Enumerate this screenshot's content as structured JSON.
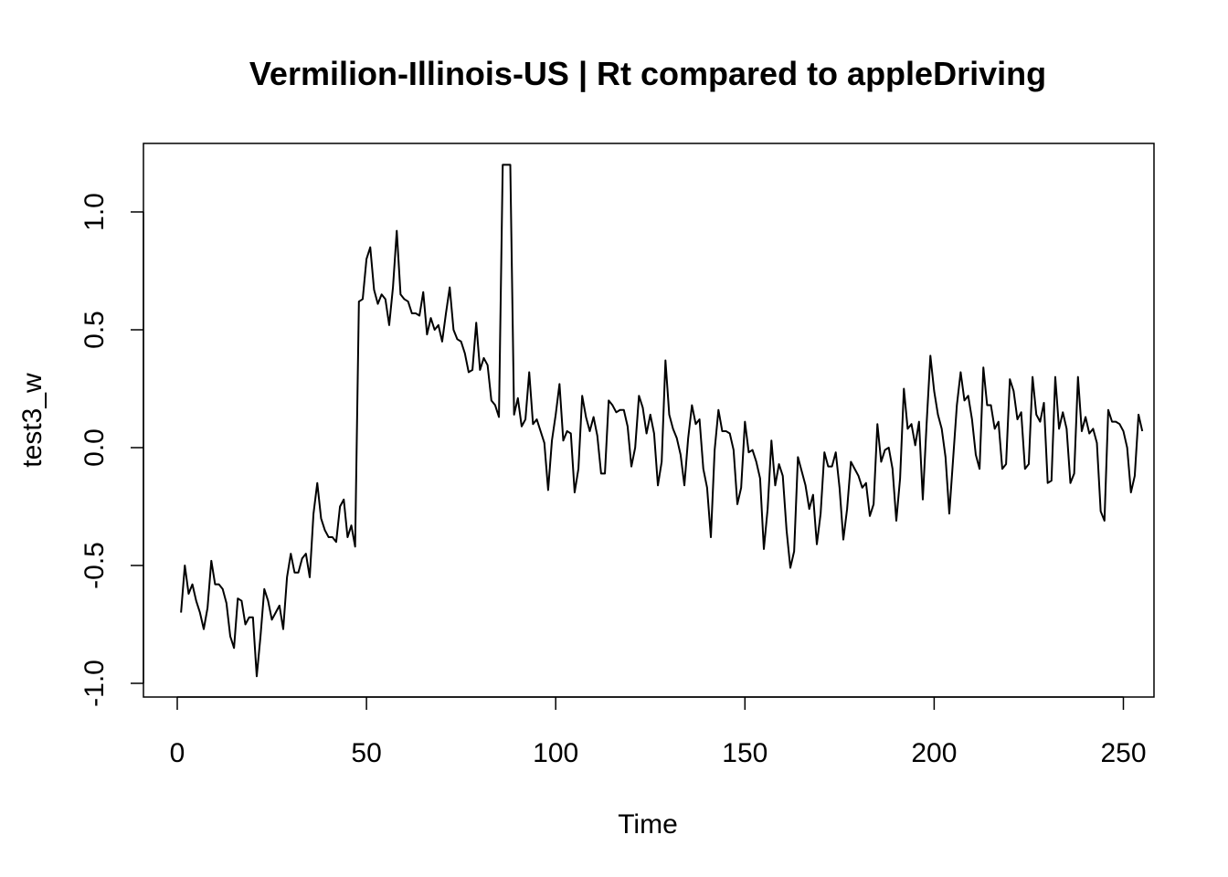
{
  "chart_data": {
    "type": "line",
    "title": "Vermilion-Illinois-US | Rt compared to appleDriving",
    "xlabel": "Time",
    "ylabel": "test3_w",
    "xlim": [
      0,
      250
    ],
    "ylim": [
      -1.0,
      1.0
    ],
    "x_ticks": [
      0,
      50,
      100,
      150,
      200,
      250
    ],
    "y_ticks": [
      -1.0,
      -0.5,
      0.0,
      0.5,
      1.0
    ],
    "x_tick_labels": [
      "0",
      "50",
      "100",
      "150",
      "200",
      "250"
    ],
    "y_tick_labels": [
      "-1.0",
      "-0.5",
      "0.0",
      "0.5",
      "1.0"
    ],
    "grid": false,
    "series": [
      {
        "x_start": 1,
        "values": [
          -0.7,
          -0.5,
          -0.62,
          -0.58,
          -0.65,
          -0.7,
          -0.77,
          -0.68,
          -0.48,
          -0.58,
          -0.58,
          -0.6,
          -0.66,
          -0.8,
          -0.85,
          -0.64,
          -0.65,
          -0.75,
          -0.72,
          -0.72,
          -0.97,
          -0.8,
          -0.6,
          -0.65,
          -0.73,
          -0.7,
          -0.67,
          -0.77,
          -0.55,
          -0.45,
          -0.53,
          -0.53,
          -0.47,
          -0.45,
          -0.55,
          -0.28,
          -0.15,
          -0.3,
          -0.35,
          -0.38,
          -0.38,
          -0.4,
          -0.25,
          -0.22,
          -0.38,
          -0.33,
          -0.42,
          0.62,
          0.63,
          0.8,
          0.85,
          0.67,
          0.61,
          0.65,
          0.63,
          0.52,
          0.68,
          0.92,
          0.65,
          0.63,
          0.62,
          0.57,
          0.57,
          0.56,
          0.66,
          0.48,
          0.55,
          0.5,
          0.52,
          0.45,
          0.57,
          0.68,
          0.5,
          0.46,
          0.45,
          0.4,
          0.32,
          0.33,
          0.53,
          0.33,
          0.38,
          0.35,
          0.2,
          0.18,
          0.13,
          1.2,
          1.2,
          1.2,
          0.14,
          0.21,
          0.09,
          0.12,
          0.32,
          0.1,
          0.12,
          0.07,
          0.02,
          -0.18,
          0.03,
          0.14,
          0.27,
          0.03,
          0.07,
          0.06,
          -0.19,
          -0.09,
          0.22,
          0.13,
          0.07,
          0.13,
          0.05,
          -0.11,
          -0.11,
          0.2,
          0.18,
          0.15,
          0.16,
          0.16,
          0.09,
          -0.08,
          0.0,
          0.22,
          0.17,
          0.06,
          0.14,
          0.06,
          -0.16,
          -0.06,
          0.37,
          0.14,
          0.08,
          0.04,
          -0.03,
          -0.16,
          0.04,
          0.18,
          0.1,
          0.12,
          -0.09,
          -0.17,
          -0.38,
          -0.01,
          0.16,
          0.07,
          0.07,
          0.06,
          -0.01,
          -0.24,
          -0.17,
          0.11,
          -0.02,
          -0.01,
          -0.06,
          -0.13,
          -0.43,
          -0.26,
          0.03,
          -0.16,
          -0.07,
          -0.12,
          -0.35,
          -0.51,
          -0.44,
          -0.04,
          -0.1,
          -0.16,
          -0.26,
          -0.2,
          -0.41,
          -0.28,
          -0.02,
          -0.08,
          -0.08,
          -0.02,
          -0.17,
          -0.39,
          -0.26,
          -0.06,
          -0.09,
          -0.12,
          -0.17,
          -0.15,
          -0.29,
          -0.24,
          0.1,
          -0.06,
          -0.01,
          0.0,
          -0.09,
          -0.31,
          -0.13,
          0.25,
          0.08,
          0.1,
          0.01,
          0.11,
          -0.22,
          0.1,
          0.39,
          0.24,
          0.14,
          0.08,
          -0.04,
          -0.28,
          -0.05,
          0.18,
          0.32,
          0.2,
          0.22,
          0.12,
          -0.03,
          -0.09,
          0.34,
          0.18,
          0.18,
          0.08,
          0.11,
          -0.09,
          -0.07,
          0.29,
          0.24,
          0.12,
          0.15,
          -0.09,
          -0.07,
          0.3,
          0.14,
          0.11,
          0.19,
          -0.15,
          -0.14,
          0.3,
          0.08,
          0.15,
          0.08,
          -0.15,
          -0.11,
          0.3,
          0.07,
          0.13,
          0.06,
          0.08,
          0.02,
          -0.27,
          -0.31,
          0.16,
          0.11,
          0.11,
          0.1,
          0.07,
          0.0,
          -0.19,
          -0.12,
          0.14,
          0.07
        ]
      }
    ]
  }
}
